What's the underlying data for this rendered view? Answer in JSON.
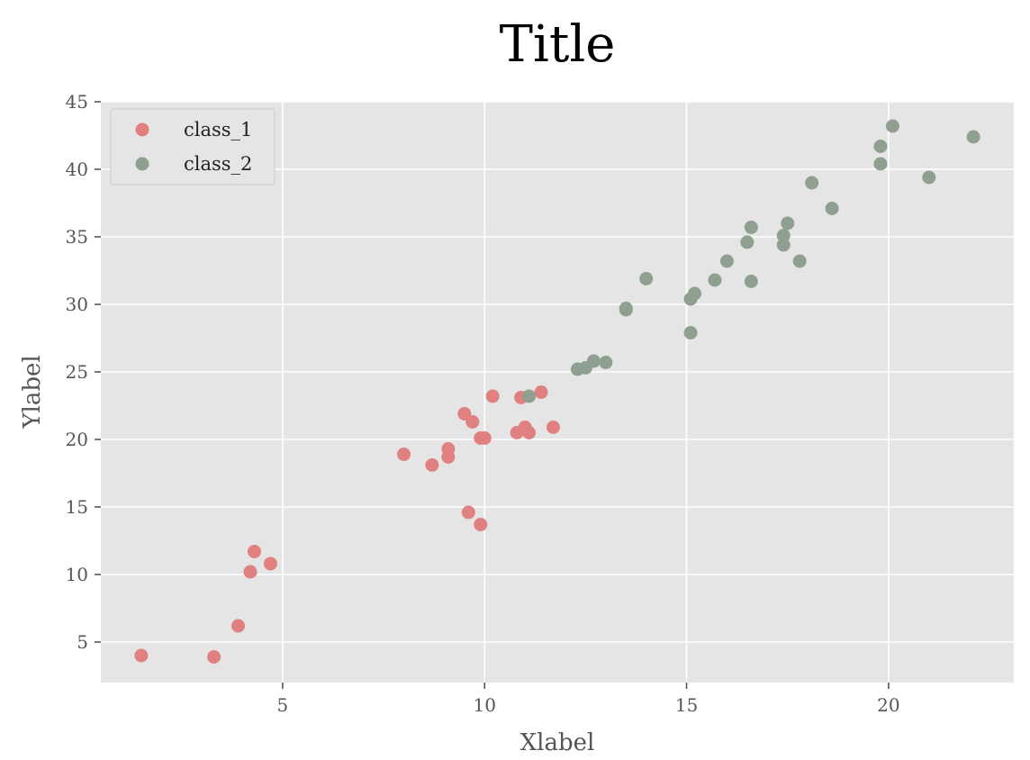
{
  "chart_data": {
    "type": "scatter",
    "title": "Title",
    "xlabel": "Xlabel",
    "ylabel": "Ylabel",
    "xlim": [
      0.5,
      23.1
    ],
    "ylim": [
      2.0,
      45.0
    ],
    "xticks": [
      5,
      10,
      15,
      20
    ],
    "yticks": [
      5,
      10,
      15,
      20,
      25,
      30,
      35,
      40,
      45
    ],
    "grid": true,
    "legend_position": "top-left",
    "series": [
      {
        "name": "class_1",
        "color": "#e08080",
        "points": [
          [
            1.5,
            4.0
          ],
          [
            3.3,
            3.9
          ],
          [
            3.9,
            6.2
          ],
          [
            4.2,
            10.2
          ],
          [
            4.3,
            11.7
          ],
          [
            4.7,
            10.8
          ],
          [
            8.0,
            18.9
          ],
          [
            8.7,
            18.1
          ],
          [
            9.1,
            18.7
          ],
          [
            9.1,
            19.3
          ],
          [
            9.5,
            21.9
          ],
          [
            9.6,
            14.6
          ],
          [
            9.7,
            21.3
          ],
          [
            9.9,
            20.1
          ],
          [
            9.9,
            13.7
          ],
          [
            10.0,
            20.1
          ],
          [
            10.2,
            23.2
          ],
          [
            10.8,
            20.5
          ],
          [
            10.9,
            23.1
          ],
          [
            11.0,
            20.9
          ],
          [
            11.1,
            20.5
          ],
          [
            11.4,
            23.5
          ],
          [
            11.7,
            20.9
          ]
        ]
      },
      {
        "name": "class_2",
        "color": "#90a090",
        "points": [
          [
            11.1,
            23.2
          ],
          [
            12.3,
            25.2
          ],
          [
            12.5,
            25.3
          ],
          [
            12.7,
            25.8
          ],
          [
            13.0,
            25.7
          ],
          [
            13.5,
            29.6
          ],
          [
            13.5,
            29.7
          ],
          [
            14.0,
            31.9
          ],
          [
            15.1,
            27.9
          ],
          [
            15.1,
            30.4
          ],
          [
            15.2,
            30.8
          ],
          [
            15.7,
            31.8
          ],
          [
            16.0,
            33.2
          ],
          [
            16.5,
            34.6
          ],
          [
            16.6,
            35.7
          ],
          [
            16.6,
            31.7
          ],
          [
            17.4,
            34.4
          ],
          [
            17.4,
            35.1
          ],
          [
            17.5,
            36.0
          ],
          [
            17.8,
            33.2
          ],
          [
            18.1,
            39.0
          ],
          [
            18.6,
            37.1
          ],
          [
            19.8,
            40.4
          ],
          [
            19.8,
            41.7
          ],
          [
            20.1,
            43.2
          ],
          [
            21.0,
            39.4
          ],
          [
            22.1,
            42.4
          ]
        ]
      }
    ]
  }
}
